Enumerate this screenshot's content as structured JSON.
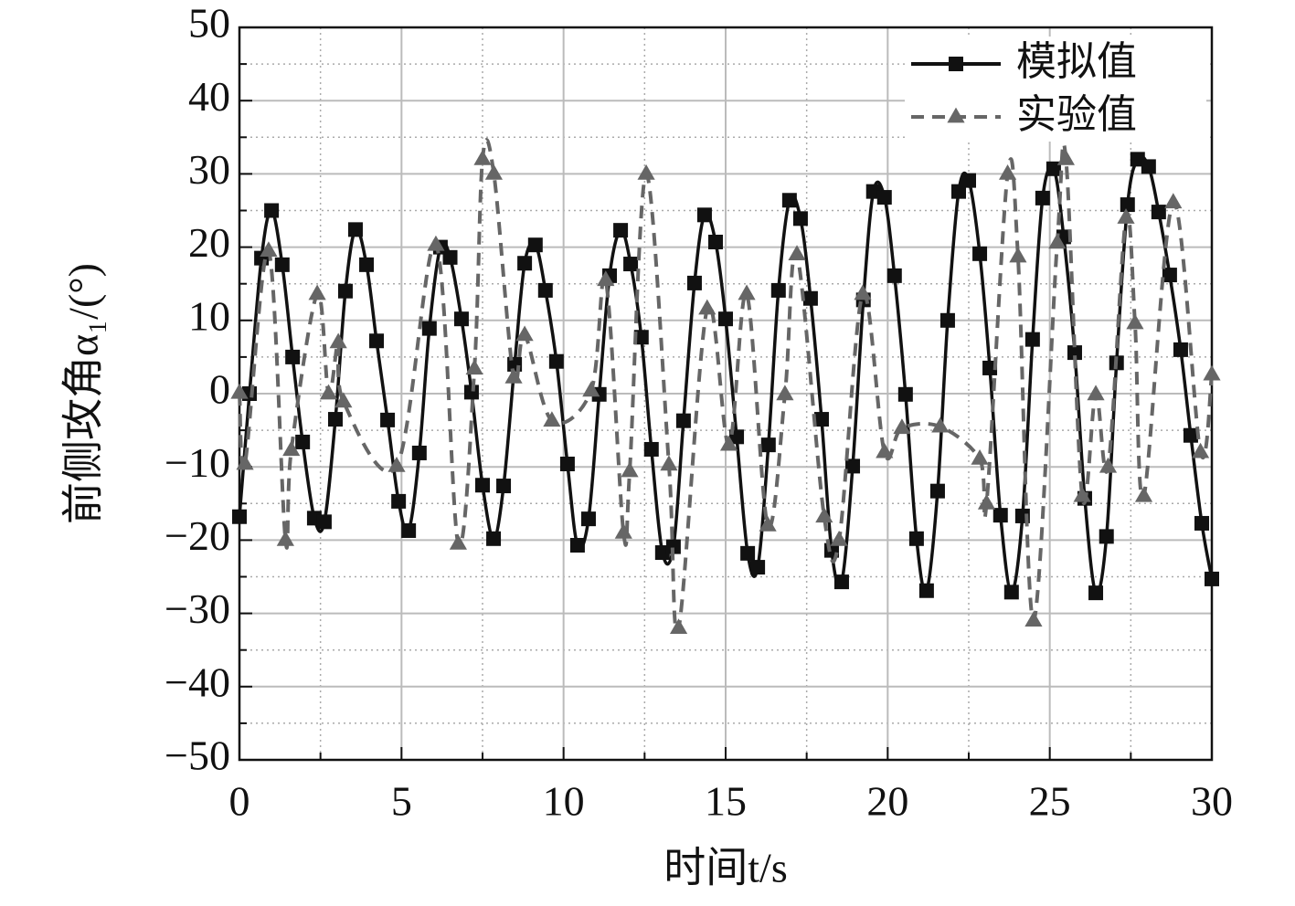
{
  "chart_data": {
    "type": "line",
    "xlabel": "时间t/s",
    "ylabel": "前侧攻角α₁/(°)",
    "xlim": [
      0,
      30
    ],
    "ylim": [
      -50,
      50
    ],
    "xticks": [
      0,
      5,
      10,
      15,
      20,
      25,
      30
    ],
    "yticks": [
      {
        "value": -50,
        "label": "−50"
      },
      {
        "value": -40,
        "label": "−40"
      },
      {
        "value": -30,
        "label": "−30"
      },
      {
        "value": -20,
        "label": "−20"
      },
      {
        "value": -10,
        "label": "−10"
      },
      0,
      10,
      20,
      30,
      40,
      50
    ],
    "minor_xticks": [
      2.5,
      7.5,
      12.5,
      17.5,
      22.5,
      27.5
    ],
    "minor_yticks": [
      -45,
      -35,
      -25,
      -15,
      -5,
      5,
      15,
      25,
      35,
      45
    ],
    "grid": true,
    "legend": "upper right",
    "series": [
      {
        "name": "模拟值",
        "color": "#111111",
        "line": "solid",
        "marker": "square",
        "x": [
          0,
          0.31,
          0.68,
          0.99,
          1.32,
          1.64,
          1.95,
          2.31,
          2.62,
          2.96,
          3.27,
          3.58,
          3.92,
          4.23,
          4.57,
          4.91,
          5.22,
          5.55,
          5.86,
          6.2,
          6.5,
          6.85,
          7.16,
          7.5,
          7.84,
          8.15,
          8.49,
          8.8,
          9.13,
          9.44,
          9.78,
          10.12,
          10.43,
          10.77,
          11.1,
          11.42,
          11.76,
          12.07,
          12.4,
          12.71,
          13.05,
          13.39,
          13.7,
          14.04,
          14.35,
          14.69,
          15,
          15.34,
          15.68,
          15.99,
          16.32,
          16.63,
          16.97,
          17.31,
          17.62,
          17.96,
          18.27,
          18.58,
          18.92,
          19.25,
          19.56,
          19.9,
          20.21,
          20.55,
          20.89,
          21.2,
          21.54,
          21.85,
          22.19,
          22.5,
          22.84,
          23.15,
          23.48,
          23.82,
          24.16,
          24.47,
          24.78,
          25.12,
          25.43,
          25.77,
          26.08,
          26.42,
          26.75,
          27.06,
          27.4,
          27.71,
          28.05,
          28.36,
          28.7,
          29.04,
          29.35,
          29.69,
          30
        ],
        "values": [
          -16.8,
          0,
          18.5,
          25,
          17.6,
          5,
          -6.6,
          -17,
          -17.5,
          -3.5,
          14,
          22.4,
          17.6,
          7.2,
          -3.6,
          -14.7,
          -18.7,
          -8.1,
          8.9,
          20,
          18.6,
          10.2,
          0.2,
          -12.5,
          -19.8,
          -12.6,
          4,
          17.8,
          20.3,
          14.1,
          4.4,
          -9.6,
          -20.7,
          -17.1,
          -0.1,
          16.1,
          22.3,
          17.7,
          7.7,
          -7.6,
          -21.7,
          -20.9,
          -3.7,
          15.1,
          24.4,
          20.7,
          10.2,
          -5.9,
          -21.8,
          -23.7,
          -7,
          14.1,
          26.4,
          23.9,
          13,
          -3.5,
          -21.4,
          -25.7,
          -9.9,
          12.8,
          27.6,
          26.8,
          16.1,
          -0.1,
          -19.8,
          -26.9,
          -13.3,
          10,
          27.6,
          29.1,
          19.1,
          3.5,
          -16.6,
          -27.1,
          -16.7,
          7.4,
          26.7,
          30.7,
          21.4,
          5.6,
          -14.3,
          -27.2,
          -19.5,
          4.2,
          25.8,
          32,
          31,
          24.8,
          16.2,
          6,
          -5.7,
          -17.7,
          -25.3
        ]
      },
      {
        "name": "实验值",
        "color": "#666666",
        "line": "dashed",
        "marker": "triangle",
        "x": [
          0,
          0.17,
          0.9,
          1.42,
          1.6,
          2.4,
          2.75,
          3.05,
          3.21,
          4.85,
          6.06,
          6.75,
          7.25,
          7.5,
          7.85,
          8.46,
          8.8,
          9.64,
          10.85,
          11.3,
          11.85,
          12.04,
          12.55,
          13.25,
          13.55,
          14.43,
          15.1,
          15.65,
          16.3,
          16.83,
          17.2,
          18.04,
          18.5,
          19.23,
          19.9,
          20.44,
          21.62,
          22.84,
          23.05,
          23.7,
          24.02,
          24.5,
          25.23,
          25.5,
          26.0,
          26.42,
          26.8,
          27.35,
          27.63,
          27.9,
          28.81,
          29.65,
          30
        ],
        "values": [
          0.1,
          -9.6,
          19.5,
          -20,
          -7.7,
          13.6,
          0,
          7,
          -1.1,
          -9.9,
          20.3,
          -20.5,
          3.4,
          32,
          30,
          2.2,
          8,
          -3.7,
          0.4,
          15.5,
          -19,
          -10.6,
          30,
          -9.7,
          -32,
          11.6,
          -7,
          13.6,
          -18,
          -0.1,
          19,
          -16.8,
          -20,
          13.6,
          -8,
          -4.7,
          -4.5,
          -8.9,
          -15,
          30,
          18.7,
          -31,
          20.6,
          32,
          -14,
          -0.1,
          -10,
          24,
          9.6,
          -14,
          26.1,
          -8,
          2.6
        ]
      }
    ]
  }
}
